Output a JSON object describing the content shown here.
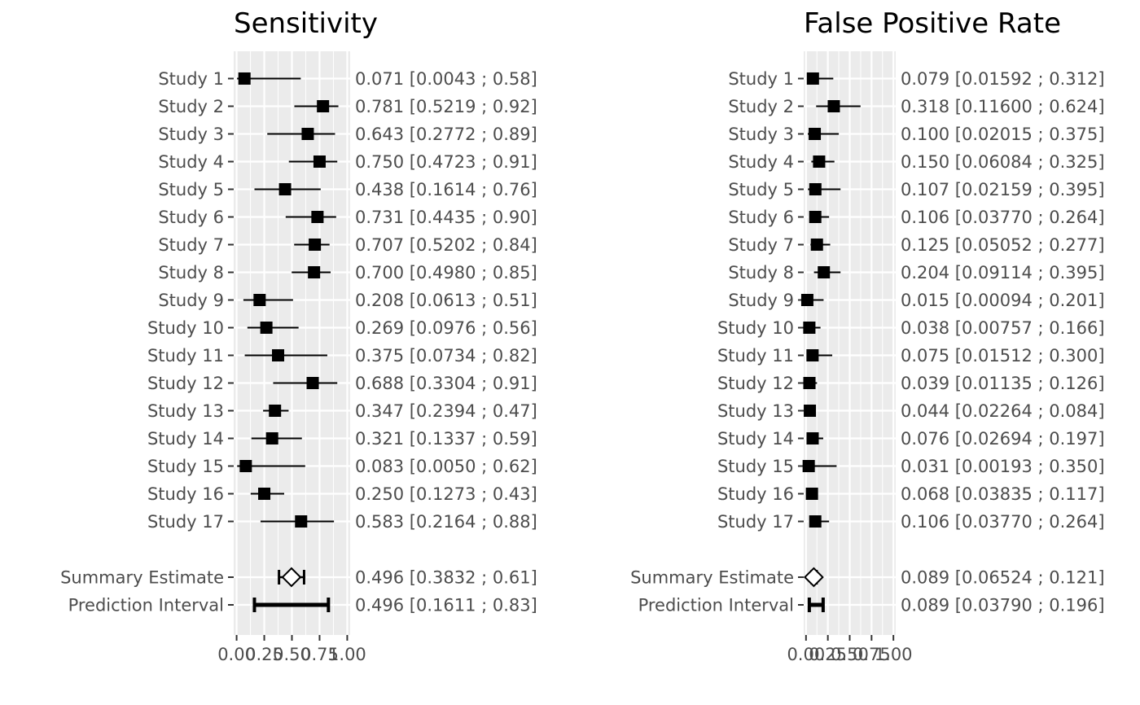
{
  "chart_data": [
    {
      "type": "forest",
      "title": "Sensitivity",
      "xlim": [
        0,
        1
      ],
      "x_ticks": [
        "0.00",
        "0.25",
        "0.50",
        "0.75",
        "1.00"
      ],
      "x_tick_values": [
        0,
        0.25,
        0.5,
        0.75,
        1
      ],
      "grid": true,
      "studies": [
        {
          "label": "Study 1",
          "est": 0.071,
          "lo": 0.0043,
          "hi": 0.58,
          "ci_text": "0.071 [0.0043 ; 0.58]"
        },
        {
          "label": "Study 2",
          "est": 0.781,
          "lo": 0.5219,
          "hi": 0.92,
          "ci_text": "0.781 [0.5219 ; 0.92]"
        },
        {
          "label": "Study 3",
          "est": 0.643,
          "lo": 0.2772,
          "hi": 0.89,
          "ci_text": "0.643 [0.2772 ; 0.89]"
        },
        {
          "label": "Study 4",
          "est": 0.75,
          "lo": 0.4723,
          "hi": 0.91,
          "ci_text": "0.750 [0.4723 ; 0.91]"
        },
        {
          "label": "Study 5",
          "est": 0.438,
          "lo": 0.1614,
          "hi": 0.76,
          "ci_text": "0.438 [0.1614 ; 0.76]"
        },
        {
          "label": "Study 6",
          "est": 0.731,
          "lo": 0.4435,
          "hi": 0.9,
          "ci_text": "0.731 [0.4435 ; 0.90]"
        },
        {
          "label": "Study 7",
          "est": 0.707,
          "lo": 0.5202,
          "hi": 0.84,
          "ci_text": "0.707 [0.5202 ; 0.84]"
        },
        {
          "label": "Study 8",
          "est": 0.7,
          "lo": 0.498,
          "hi": 0.85,
          "ci_text": "0.700 [0.4980 ; 0.85]"
        },
        {
          "label": "Study 9",
          "est": 0.208,
          "lo": 0.0613,
          "hi": 0.51,
          "ci_text": "0.208 [0.0613 ; 0.51]"
        },
        {
          "label": "Study 10",
          "est": 0.269,
          "lo": 0.0976,
          "hi": 0.56,
          "ci_text": "0.269 [0.0976 ; 0.56]"
        },
        {
          "label": "Study 11",
          "est": 0.375,
          "lo": 0.0734,
          "hi": 0.82,
          "ci_text": "0.375 [0.0734 ; 0.82]"
        },
        {
          "label": "Study 12",
          "est": 0.688,
          "lo": 0.3304,
          "hi": 0.91,
          "ci_text": "0.688 [0.3304 ; 0.91]"
        },
        {
          "label": "Study 13",
          "est": 0.347,
          "lo": 0.2394,
          "hi": 0.47,
          "ci_text": "0.347 [0.2394 ; 0.47]"
        },
        {
          "label": "Study 14",
          "est": 0.321,
          "lo": 0.1337,
          "hi": 0.59,
          "ci_text": "0.321 [0.1337 ; 0.59]"
        },
        {
          "label": "Study 15",
          "est": 0.083,
          "lo": 0.005,
          "hi": 0.62,
          "ci_text": "0.083 [0.0050 ; 0.62]"
        },
        {
          "label": "Study 16",
          "est": 0.25,
          "lo": 0.1273,
          "hi": 0.43,
          "ci_text": "0.250 [0.1273 ; 0.43]"
        },
        {
          "label": "Study 17",
          "est": 0.583,
          "lo": 0.2164,
          "hi": 0.88,
          "ci_text": "0.583 [0.2164 ; 0.88]"
        }
      ],
      "summary": {
        "label": "Summary Estimate",
        "est": 0.496,
        "lo": 0.3832,
        "hi": 0.61,
        "ci_text": "0.496 [0.3832 ; 0.61]"
      },
      "prediction": {
        "label": "Prediction Interval",
        "est": 0.496,
        "lo": 0.1611,
        "hi": 0.83,
        "ci_text": "0.496 [0.1611 ; 0.83]"
      }
    },
    {
      "type": "forest",
      "title": "False Positive Rate",
      "xlim": [
        0,
        1
      ],
      "x_ticks": [
        "0.00",
        "0.25",
        "0.50",
        "0.75",
        "1.00"
      ],
      "x_tick_values": [
        0,
        0.25,
        0.5,
        0.75,
        1
      ],
      "grid": true,
      "studies": [
        {
          "label": "Study 1",
          "est": 0.079,
          "lo": 0.01592,
          "hi": 0.312,
          "ci_text": "0.079 [0.01592 ; 0.312]"
        },
        {
          "label": "Study 2",
          "est": 0.318,
          "lo": 0.116,
          "hi": 0.624,
          "ci_text": "0.318 [0.11600 ; 0.624]"
        },
        {
          "label": "Study 3",
          "est": 0.1,
          "lo": 0.02015,
          "hi": 0.375,
          "ci_text": "0.100 [0.02015 ; 0.375]"
        },
        {
          "label": "Study 4",
          "est": 0.15,
          "lo": 0.06084,
          "hi": 0.325,
          "ci_text": "0.150 [0.06084 ; 0.325]"
        },
        {
          "label": "Study 5",
          "est": 0.107,
          "lo": 0.02159,
          "hi": 0.395,
          "ci_text": "0.107 [0.02159 ; 0.395]"
        },
        {
          "label": "Study 6",
          "est": 0.106,
          "lo": 0.0377,
          "hi": 0.264,
          "ci_text": "0.106 [0.03770 ; 0.264]"
        },
        {
          "label": "Study 7",
          "est": 0.125,
          "lo": 0.05052,
          "hi": 0.277,
          "ci_text": "0.125 [0.05052 ; 0.277]"
        },
        {
          "label": "Study 8",
          "est": 0.204,
          "lo": 0.09114,
          "hi": 0.395,
          "ci_text": "0.204 [0.09114 ; 0.395]"
        },
        {
          "label": "Study 9",
          "est": 0.015,
          "lo": 0.00094,
          "hi": 0.201,
          "ci_text": "0.015 [0.00094 ; 0.201]"
        },
        {
          "label": "Study 10",
          "est": 0.038,
          "lo": 0.00757,
          "hi": 0.166,
          "ci_text": "0.038 [0.00757 ; 0.166]"
        },
        {
          "label": "Study 11",
          "est": 0.075,
          "lo": 0.01512,
          "hi": 0.3,
          "ci_text": "0.075 [0.01512 ; 0.300]"
        },
        {
          "label": "Study 12",
          "est": 0.039,
          "lo": 0.01135,
          "hi": 0.126,
          "ci_text": "0.039 [0.01135 ; 0.126]"
        },
        {
          "label": "Study 13",
          "est": 0.044,
          "lo": 0.02264,
          "hi": 0.084,
          "ci_text": "0.044 [0.02264 ; 0.084]"
        },
        {
          "label": "Study 14",
          "est": 0.076,
          "lo": 0.02694,
          "hi": 0.197,
          "ci_text": "0.076 [0.02694 ; 0.197]"
        },
        {
          "label": "Study 15",
          "est": 0.031,
          "lo": 0.00193,
          "hi": 0.35,
          "ci_text": "0.031 [0.00193 ; 0.350]"
        },
        {
          "label": "Study 16",
          "est": 0.068,
          "lo": 0.03835,
          "hi": 0.117,
          "ci_text": "0.068 [0.03835 ; 0.117]"
        },
        {
          "label": "Study 17",
          "est": 0.106,
          "lo": 0.0377,
          "hi": 0.264,
          "ci_text": "0.106 [0.03770 ; 0.264]"
        }
      ],
      "summary": {
        "label": "Summary Estimate",
        "est": 0.089,
        "lo": 0.06524,
        "hi": 0.121,
        "ci_text": "0.089 [0.06524 ; 0.121]"
      },
      "prediction": {
        "label": "Prediction Interval",
        "est": 0.089,
        "lo": 0.0379,
        "hi": 0.196,
        "ci_text": "0.089 [0.03790 ; 0.196]"
      }
    }
  ]
}
